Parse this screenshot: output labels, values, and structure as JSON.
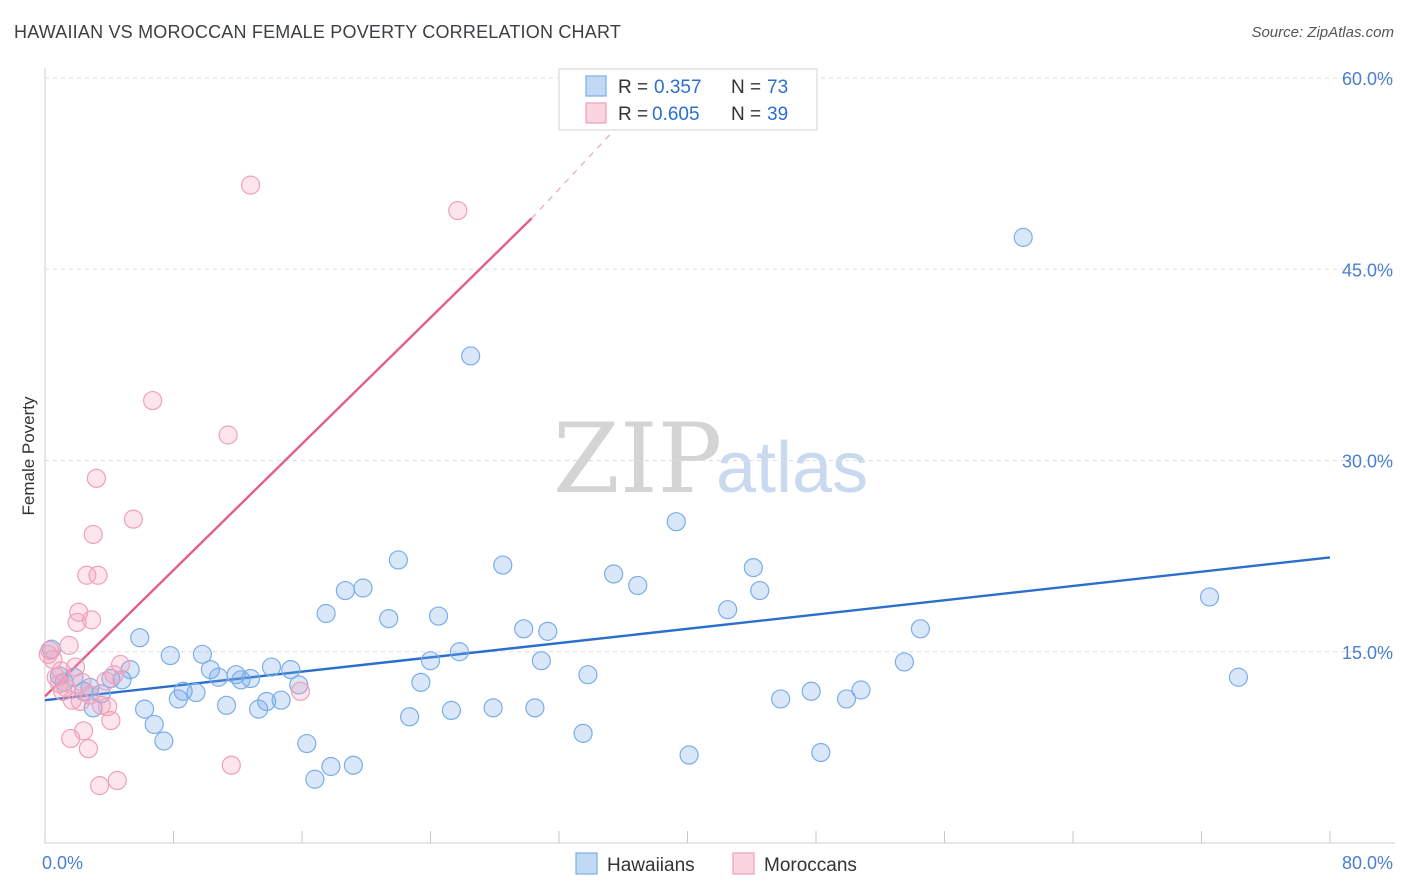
{
  "chart_data": {
    "type": "scatter",
    "title": "HAWAIIAN VS MOROCCAN FEMALE POVERTY CORRELATION CHART",
    "source": "Source: ZipAtlas.com",
    "xlabel": "",
    "ylabel": "Female Poverty",
    "xlim": [
      0,
      80
    ],
    "ylim": [
      0,
      60
    ],
    "x_tick_labels": [
      {
        "value": 0,
        "label": "0.0%"
      },
      {
        "value": 80,
        "label": "80.0%"
      }
    ],
    "y_tick_labels": [
      {
        "value": 15,
        "label": "15.0%"
      },
      {
        "value": 30,
        "label": "30.0%"
      },
      {
        "value": 45,
        "label": "45.0%"
      },
      {
        "value": 60,
        "label": "60.0%"
      }
    ],
    "watermark": {
      "zip": "ZIP",
      "atlas": "atlas"
    },
    "legend_top": [
      {
        "r_label": "R = ",
        "r_value": "0.357",
        "n_label": "N = ",
        "n_value": "73",
        "series": "Hawaiians"
      },
      {
        "r_label": "R = ",
        "r_value": "0.605",
        "n_label": "N = ",
        "n_value": "39",
        "series": "Moroccans"
      }
    ],
    "series": [
      {
        "name": "Hawaiians",
        "color": "#7aaee8",
        "fill": "rgba(120,170,235,0.28)",
        "line_color": "#2a6fcc",
        "trend": {
          "x0": 0,
          "y0": 11.2,
          "x1": 80,
          "y1": 22.4
        },
        "points": [
          [
            0.4,
            15.2
          ],
          [
            0.9,
            13.1
          ],
          [
            1.2,
            12.6
          ],
          [
            1.8,
            13.0
          ],
          [
            2.4,
            11.9
          ],
          [
            2.8,
            12.2
          ],
          [
            3.0,
            10.6
          ],
          [
            3.5,
            11.7
          ],
          [
            4.1,
            12.9
          ],
          [
            4.8,
            12.8
          ],
          [
            5.3,
            13.6
          ],
          [
            5.9,
            16.1
          ],
          [
            6.2,
            10.5
          ],
          [
            6.8,
            9.3
          ],
          [
            7.4,
            8.0
          ],
          [
            7.8,
            14.7
          ],
          [
            8.3,
            11.3
          ],
          [
            8.6,
            11.9
          ],
          [
            9.4,
            11.8
          ],
          [
            9.8,
            14.8
          ],
          [
            10.3,
            13.6
          ],
          [
            10.8,
            13.0
          ],
          [
            11.3,
            10.8
          ],
          [
            11.9,
            13.2
          ],
          [
            12.2,
            12.8
          ],
          [
            12.8,
            12.9
          ],
          [
            13.3,
            10.5
          ],
          [
            13.8,
            11.1
          ],
          [
            14.1,
            13.8
          ],
          [
            14.7,
            11.2
          ],
          [
            15.3,
            13.6
          ],
          [
            15.8,
            12.4
          ],
          [
            16.3,
            7.8
          ],
          [
            16.8,
            5.0
          ],
          [
            17.5,
            18.0
          ],
          [
            17.8,
            6.0
          ],
          [
            18.7,
            19.8
          ],
          [
            19.2,
            6.1
          ],
          [
            19.8,
            20.0
          ],
          [
            21.4,
            17.6
          ],
          [
            22.0,
            22.2
          ],
          [
            22.7,
            9.9
          ],
          [
            23.4,
            12.6
          ],
          [
            24.0,
            14.3
          ],
          [
            24.5,
            17.8
          ],
          [
            25.3,
            10.4
          ],
          [
            25.8,
            15.0
          ],
          [
            26.5,
            38.2
          ],
          [
            27.9,
            10.6
          ],
          [
            28.5,
            21.8
          ],
          [
            29.8,
            16.8
          ],
          [
            30.5,
            10.6
          ],
          [
            30.9,
            14.3
          ],
          [
            31.3,
            16.6
          ],
          [
            33.5,
            8.6
          ],
          [
            33.8,
            13.2
          ],
          [
            35.4,
            21.1
          ],
          [
            36.9,
            20.2
          ],
          [
            39.3,
            25.2
          ],
          [
            40.1,
            6.9
          ],
          [
            42.5,
            18.3
          ],
          [
            44.1,
            21.6
          ],
          [
            44.5,
            19.8
          ],
          [
            45.8,
            11.3
          ],
          [
            47.7,
            11.9
          ],
          [
            48.3,
            7.1
          ],
          [
            49.9,
            11.3
          ],
          [
            50.8,
            12.0
          ],
          [
            53.5,
            14.2
          ],
          [
            54.5,
            16.8
          ],
          [
            60.9,
            47.5
          ],
          [
            72.5,
            19.3
          ],
          [
            74.3,
            13.0
          ]
        ]
      },
      {
        "name": "Moroccans",
        "color": "#f0a0b8",
        "fill": "rgba(244,160,185,0.28)",
        "line_color": "#e0608a",
        "trend": {
          "x0": 0,
          "y0": 11.5,
          "x1": 30.3,
          "y1": 49.0
        },
        "trend_dashed": {
          "x0": 30.3,
          "y0": 49.0,
          "x1": 35.5,
          "y1": 56.0
        },
        "points": [
          [
            0.3,
            15.1
          ],
          [
            0.5,
            14.4
          ],
          [
            0.7,
            13.0
          ],
          [
            0.9,
            12.5
          ],
          [
            1.1,
            11.9
          ],
          [
            1.3,
            12.2
          ],
          [
            1.5,
            15.5
          ],
          [
            1.6,
            8.2
          ],
          [
            1.7,
            11.2
          ],
          [
            1.9,
            13.8
          ],
          [
            2.0,
            17.3
          ],
          [
            2.1,
            18.1
          ],
          [
            2.3,
            12.6
          ],
          [
            2.4,
            8.8
          ],
          [
            2.6,
            21.0
          ],
          [
            2.7,
            7.4
          ],
          [
            2.8,
            11.6
          ],
          [
            2.9,
            17.5
          ],
          [
            3.0,
            24.2
          ],
          [
            3.2,
            28.6
          ],
          [
            3.3,
            21.0
          ],
          [
            3.4,
            4.5
          ],
          [
            3.5,
            10.8
          ],
          [
            3.8,
            12.7
          ],
          [
            3.9,
            10.7
          ],
          [
            4.1,
            9.6
          ],
          [
            4.3,
            13.2
          ],
          [
            4.5,
            4.9
          ],
          [
            4.7,
            14.0
          ],
          [
            5.5,
            25.4
          ],
          [
            6.7,
            34.7
          ],
          [
            11.4,
            32.0
          ],
          [
            11.6,
            6.1
          ],
          [
            12.8,
            51.6
          ],
          [
            15.9,
            11.9
          ],
          [
            25.7,
            49.6
          ],
          [
            0.2,
            14.8
          ],
          [
            1.0,
            13.5
          ],
          [
            2.2,
            11.1
          ]
        ]
      }
    ],
    "legend_bottom": [
      "Hawaiians",
      "Moroccans"
    ]
  }
}
